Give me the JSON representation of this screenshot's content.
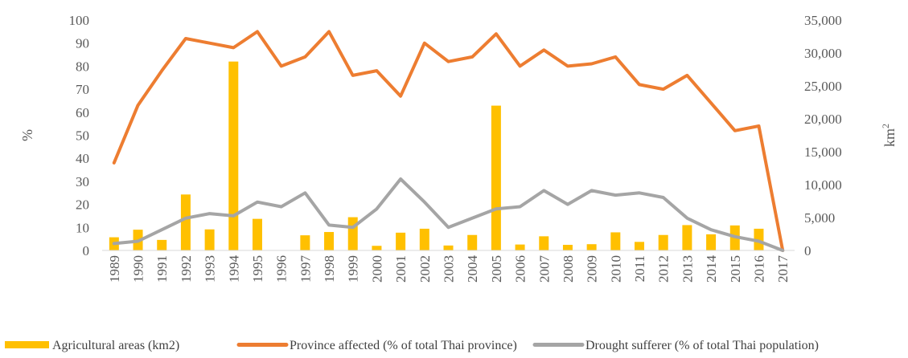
{
  "chart_data": {
    "type": "bar",
    "categories": [
      "1989",
      "1990",
      "1991",
      "1992",
      "1993",
      "1994",
      "1995",
      "1996",
      "1997",
      "1998",
      "1999",
      "2000",
      "2001",
      "2002",
      "2003",
      "2004",
      "2005",
      "2006",
      "2007",
      "2008",
      "2009",
      "2010",
      "2011",
      "2012",
      "2013",
      "2014",
      "2015",
      "2016",
      "2017"
    ],
    "series": [
      {
        "name": "Agricultural areas (km2)",
        "type": "bar",
        "axis": "right",
        "color": "#FFC000",
        "values": [
          2000,
          3150,
          1600,
          8500,
          3200,
          28700,
          4800,
          0,
          2300,
          2800,
          5050,
          700,
          2700,
          3300,
          750,
          2350,
          22000,
          900,
          2150,
          850,
          950,
          2750,
          1300,
          2350,
          3850,
          2450,
          3800,
          3300,
          0
        ]
      },
      {
        "name": "Province affected (% of total Thai province)",
        "type": "line",
        "axis": "left",
        "color": "#ED7D31",
        "values": [
          38,
          63,
          78,
          92,
          90,
          88,
          95,
          80,
          84,
          95,
          76,
          78,
          67,
          90,
          82,
          84,
          94,
          80,
          87,
          80,
          81,
          84,
          72,
          70,
          76,
          64,
          52,
          54,
          0
        ]
      },
      {
        "name": "Drought sufferer (% of total Thai population)",
        "type": "line",
        "axis": "left",
        "color": "#A5A5A5",
        "values": [
          3,
          4,
          9,
          14,
          16,
          15,
          21,
          19,
          25,
          11,
          10,
          18,
          31,
          21,
          10,
          14,
          18,
          19,
          26,
          20,
          26,
          24,
          25,
          23,
          14,
          9,
          6,
          4,
          0
        ]
      }
    ],
    "y_left": {
      "label": "%",
      "ticks": [
        "0",
        "10",
        "20",
        "30",
        "40",
        "50",
        "60",
        "70",
        "80",
        "90",
        "100"
      ],
      "range": [
        0,
        100
      ]
    },
    "y_right": {
      "label": "km",
      "label_sup": "2",
      "ticks": [
        "0",
        "5,000",
        "10,000",
        "15,000",
        "20,000",
        "25,000",
        "30,000",
        "35,000"
      ],
      "range": [
        0,
        35000
      ]
    },
    "legend_position": "bottom",
    "grid": false
  }
}
